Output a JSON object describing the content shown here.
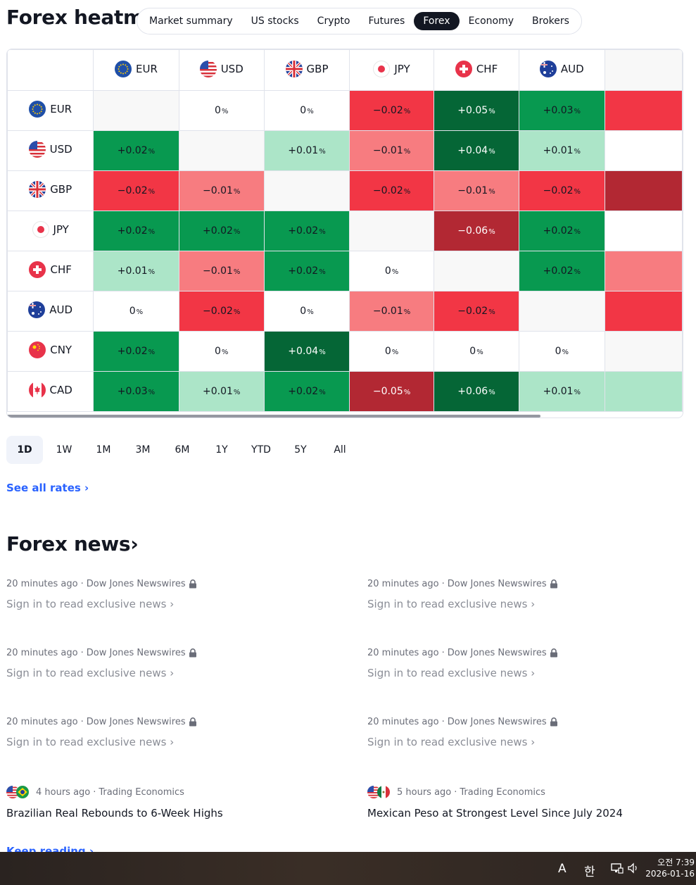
{
  "page": {
    "title": "Forex heatmap"
  },
  "tabs": [
    {
      "label": "Market summary",
      "active": false
    },
    {
      "label": "US stocks",
      "active": false
    },
    {
      "label": "Crypto",
      "active": false
    },
    {
      "label": "Futures",
      "active": false
    },
    {
      "label": "Forex",
      "active": true
    },
    {
      "label": "Economy",
      "active": false
    },
    {
      "label": "Brokers",
      "active": false
    }
  ],
  "heatmap": {
    "columns": [
      "EUR",
      "USD",
      "GBP",
      "JPY",
      "CHF",
      "AUD"
    ],
    "rows": [
      {
        "currency": "EUR",
        "cells": [
          {
            "sign": "",
            "num": "",
            "tone": "self"
          },
          {
            "sign": "",
            "num": "0",
            "tone": "zero"
          },
          {
            "sign": "",
            "num": "0",
            "tone": "zero"
          },
          {
            "sign": "−",
            "num": "0.02",
            "tone": "neg2"
          },
          {
            "sign": "+",
            "num": "0.05",
            "tone": "pos3"
          },
          {
            "sign": "+",
            "num": "0.03",
            "tone": "pos2"
          }
        ],
        "edge": "neg2"
      },
      {
        "currency": "USD",
        "cells": [
          {
            "sign": "+",
            "num": "0.02",
            "tone": "pos2"
          },
          {
            "sign": "",
            "num": "",
            "tone": "self"
          },
          {
            "sign": "+",
            "num": "0.01",
            "tone": "pos1"
          },
          {
            "sign": "−",
            "num": "0.01",
            "tone": "neg1"
          },
          {
            "sign": "+",
            "num": "0.04",
            "tone": "pos3"
          },
          {
            "sign": "+",
            "num": "0.01",
            "tone": "pos1"
          }
        ],
        "edge": "zero"
      },
      {
        "currency": "GBP",
        "cells": [
          {
            "sign": "−",
            "num": "0.02",
            "tone": "neg2"
          },
          {
            "sign": "−",
            "num": "0.01",
            "tone": "neg1"
          },
          {
            "sign": "",
            "num": "",
            "tone": "self"
          },
          {
            "sign": "−",
            "num": "0.02",
            "tone": "neg2"
          },
          {
            "sign": "−",
            "num": "0.01",
            "tone": "neg1"
          },
          {
            "sign": "−",
            "num": "0.02",
            "tone": "neg2"
          }
        ],
        "edge": "neg3"
      },
      {
        "currency": "JPY",
        "cells": [
          {
            "sign": "+",
            "num": "0.02",
            "tone": "pos2"
          },
          {
            "sign": "+",
            "num": "0.02",
            "tone": "pos2"
          },
          {
            "sign": "+",
            "num": "0.02",
            "tone": "pos2"
          },
          {
            "sign": "",
            "num": "",
            "tone": "self"
          },
          {
            "sign": "−",
            "num": "0.06",
            "tone": "neg3"
          },
          {
            "sign": "+",
            "num": "0.02",
            "tone": "pos2"
          }
        ],
        "edge": "zero"
      },
      {
        "currency": "CHF",
        "cells": [
          {
            "sign": "+",
            "num": "0.01",
            "tone": "pos1"
          },
          {
            "sign": "−",
            "num": "0.01",
            "tone": "neg1"
          },
          {
            "sign": "+",
            "num": "0.02",
            "tone": "pos2"
          },
          {
            "sign": "",
            "num": "0",
            "tone": "zero"
          },
          {
            "sign": "",
            "num": "",
            "tone": "self"
          },
          {
            "sign": "+",
            "num": "0.02",
            "tone": "pos2"
          }
        ],
        "edge": "neg1"
      },
      {
        "currency": "AUD",
        "cells": [
          {
            "sign": "",
            "num": "0",
            "tone": "zero"
          },
          {
            "sign": "−",
            "num": "0.02",
            "tone": "neg2"
          },
          {
            "sign": "",
            "num": "0",
            "tone": "zero"
          },
          {
            "sign": "−",
            "num": "0.01",
            "tone": "neg1"
          },
          {
            "sign": "−",
            "num": "0.02",
            "tone": "neg2"
          },
          {
            "sign": "",
            "num": "",
            "tone": "self"
          }
        ],
        "edge": "neg2"
      },
      {
        "currency": "CNY",
        "cells": [
          {
            "sign": "+",
            "num": "0.02",
            "tone": "pos2"
          },
          {
            "sign": "",
            "num": "0",
            "tone": "zero"
          },
          {
            "sign": "+",
            "num": "0.04",
            "tone": "pos3"
          },
          {
            "sign": "",
            "num": "0",
            "tone": "zero"
          },
          {
            "sign": "",
            "num": "0",
            "tone": "zero"
          },
          {
            "sign": "",
            "num": "0",
            "tone": "zero"
          }
        ],
        "edge": "self"
      },
      {
        "currency": "CAD",
        "cells": [
          {
            "sign": "+",
            "num": "0.03",
            "tone": "pos2"
          },
          {
            "sign": "+",
            "num": "0.01",
            "tone": "pos1"
          },
          {
            "sign": "+",
            "num": "0.02",
            "tone": "pos2"
          },
          {
            "sign": "−",
            "num": "0.05",
            "tone": "neg3"
          },
          {
            "sign": "+",
            "num": "0.06",
            "tone": "pos3"
          },
          {
            "sign": "+",
            "num": "0.01",
            "tone": "pos1"
          }
        ],
        "edge": "pos1"
      }
    ],
    "percent_symbol": "%"
  },
  "periods": [
    {
      "label": "1D",
      "active": true
    },
    {
      "label": "1W",
      "active": false
    },
    {
      "label": "1M",
      "active": false
    },
    {
      "label": "3M",
      "active": false
    },
    {
      "label": "6M",
      "active": false
    },
    {
      "label": "1Y",
      "active": false
    },
    {
      "label": "YTD",
      "active": false
    },
    {
      "label": "5Y",
      "active": false
    },
    {
      "label": "All",
      "active": false
    }
  ],
  "see_all": "See all rates ›",
  "news": {
    "title": "Forex news›",
    "items": [
      {
        "time": "20 minutes ago",
        "source": "Dow Jones Newswires",
        "locked": true,
        "headline": "Sign in to read exclusive news ›",
        "flags": []
      },
      {
        "time": "20 minutes ago",
        "source": "Dow Jones Newswires",
        "locked": true,
        "headline": "Sign in to read exclusive news ›",
        "flags": []
      },
      {
        "time": "20 minutes ago",
        "source": "Dow Jones Newswires",
        "locked": true,
        "headline": "Sign in to read exclusive news ›",
        "flags": []
      },
      {
        "time": "20 minutes ago",
        "source": "Dow Jones Newswires",
        "locked": true,
        "headline": "Sign in to read exclusive news ›",
        "flags": []
      },
      {
        "time": "20 minutes ago",
        "source": "Dow Jones Newswires",
        "locked": true,
        "headline": "Sign in to read exclusive news ›",
        "flags": []
      },
      {
        "time": "20 minutes ago",
        "source": "Dow Jones Newswires",
        "locked": true,
        "headline": "Sign in to read exclusive news ›",
        "flags": []
      },
      {
        "time": "4 hours ago",
        "source": "Trading Economics",
        "locked": false,
        "headline": "Brazilian Real Rebounds to 6-Week Highs",
        "flags": [
          "USD",
          "BRL"
        ]
      },
      {
        "time": "5 hours ago",
        "source": "Trading Economics",
        "locked": false,
        "headline": "Mexican Peso at Strongest Level Since July 2024",
        "flags": [
          "USD",
          "MXN"
        ]
      }
    ],
    "keep_reading": "Keep reading ›"
  },
  "taskbar": {
    "ime_mode": "A",
    "ime_lang": "한",
    "time": "오전 7:39",
    "date": "2026-01-16"
  }
}
